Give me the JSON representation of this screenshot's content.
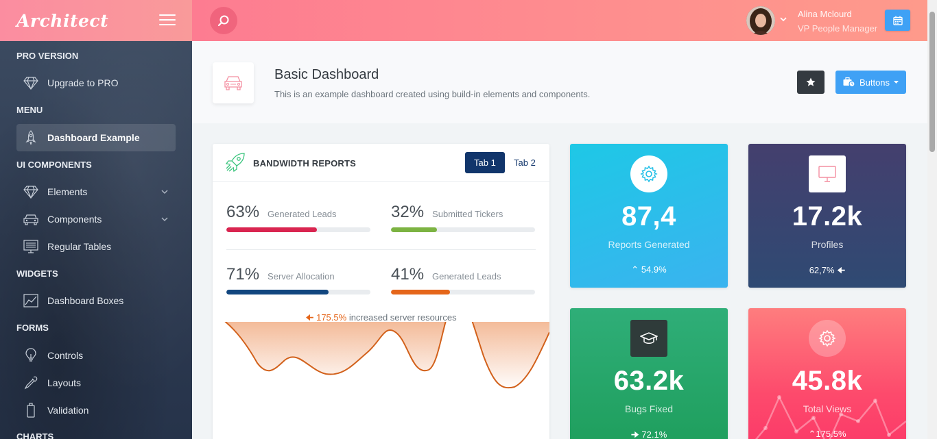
{
  "app": {
    "logo": "Architect"
  },
  "header": {
    "user_name": "Alina Mclourd",
    "user_role": "VP People Manager"
  },
  "sidebar": {
    "sections": [
      {
        "heading": "PRO VERSION",
        "items": [
          {
            "label": "Upgrade to PRO",
            "icon": "diamond-icon"
          }
        ]
      },
      {
        "heading": "MENU",
        "items": [
          {
            "label": "Dashboard Example",
            "icon": "rocket-icon",
            "active": true
          }
        ]
      },
      {
        "heading": "UI COMPONENTS",
        "items": [
          {
            "label": "Elements",
            "icon": "diamond-icon",
            "expandable": true
          },
          {
            "label": "Components",
            "icon": "car-icon",
            "expandable": true
          },
          {
            "label": "Regular Tables",
            "icon": "display-icon"
          }
        ]
      },
      {
        "heading": "WIDGETS",
        "items": [
          {
            "label": "Dashboard Boxes",
            "icon": "graph-icon"
          }
        ]
      },
      {
        "heading": "FORMS",
        "items": [
          {
            "label": "Controls",
            "icon": "lightbulb-icon"
          },
          {
            "label": "Layouts",
            "icon": "eyedropper-icon"
          },
          {
            "label": "Validation",
            "icon": "battery-icon"
          }
        ]
      },
      {
        "heading": "CHARTS",
        "items": []
      }
    ]
  },
  "page_title": {
    "heading": "Basic Dashboard",
    "subheading": "This is an example dashboard created using build-in elements and components.",
    "buttons_label": "Buttons"
  },
  "bandwidth": {
    "title": "BANDWIDTH REPORTS",
    "tabs": [
      "Tab 1",
      "Tab 2"
    ],
    "progress": [
      {
        "value": "63%",
        "label": "Generated Leads",
        "fill": 0.63,
        "color": "#d92550"
      },
      {
        "value": "32%",
        "label": "Submitted Tickers",
        "fill": 0.32,
        "color": "#7cb342"
      },
      {
        "value": "71%",
        "label": "Server Allocation",
        "fill": 0.71,
        "color": "#11467f"
      },
      {
        "value": "41%",
        "label": "Generated Leads",
        "fill": 0.41,
        "color": "#e5661a"
      }
    ],
    "note_value": "175.5%",
    "note_text": "increased server resources",
    "accent": "#e5661a"
  },
  "stats": [
    {
      "value": "87,4",
      "label": "Reports Generated",
      "change": "54.9%",
      "direction": "up",
      "icon": "gear-icon"
    },
    {
      "value": "17.2k",
      "label": "Profiles",
      "change": "62,7%",
      "direction": "left",
      "icon": "monitor-icon"
    },
    {
      "value": "63.2k",
      "label": "Bugs Fixed",
      "change": "72.1%",
      "direction": "right",
      "icon": "graduation-cap-icon"
    },
    {
      "value": "45.8k",
      "label": "Total Views",
      "change": "175.5%",
      "direction": "up",
      "icon": "gear-icon"
    }
  ],
  "colors": {
    "cyan_card": "#2ec0e8",
    "purple_card": "#3f4d7c",
    "green_card": "#27a66b",
    "red_card": "#fd5c6f"
  }
}
